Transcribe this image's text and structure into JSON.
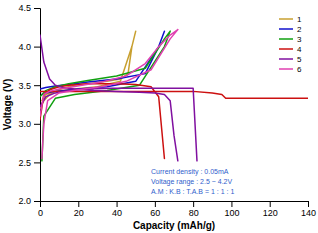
{
  "chart_data": {
    "type": "line",
    "xlabel": "Capacity (mAh/g)",
    "ylabel": "Voltage (V)",
    "xlim": [
      0,
      140
    ],
    "ylim": [
      2.0,
      4.5
    ],
    "xticks": [
      0,
      20,
      40,
      60,
      80,
      100,
      120,
      140
    ],
    "yticks": [
      {
        "value": 2.0,
        "label": "2.0"
      },
      2.5,
      {
        "value": 3.0,
        "label": "3.0"
      },
      3.5,
      {
        "value": 4.0,
        "label": "4.0"
      },
      4.5
    ],
    "grid": false,
    "legend": "upper right",
    "annotation": {
      "lines": [
        "Current density : 0.05mA",
        "Voltage range : 2.5 ~ 4.2V",
        "A.M : K.B : T.A.B = 1 : 1 : 1"
      ],
      "x": 58,
      "y": 2.07,
      "color": "#3060CC"
    },
    "series": [
      {
        "name": "1",
        "color": "#C8A030",
        "x": [
          0,
          2,
          5,
          8,
          12,
          18,
          25,
          35,
          42,
          46,
          48,
          50,
          null,
          50,
          48,
          42,
          30,
          18,
          8,
          3,
          1
        ],
        "values": [
          3.2,
          3.3,
          3.38,
          3.42,
          3.46,
          3.5,
          3.52,
          3.55,
          3.58,
          3.65,
          4.0,
          4.2,
          null,
          4.2,
          4.0,
          3.55,
          3.48,
          3.45,
          3.42,
          3.38,
          3.3
        ]
      },
      {
        "name": "2",
        "color": "#1010CC",
        "x": [
          0,
          3,
          8,
          15,
          25,
          40,
          55,
          62,
          65,
          null,
          65,
          62,
          50,
          35,
          20,
          8,
          3,
          1
        ],
        "values": [
          3.45,
          3.47,
          3.49,
          3.51,
          3.54,
          3.58,
          3.65,
          4.0,
          4.2,
          null,
          4.2,
          4.0,
          3.55,
          3.48,
          3.45,
          3.42,
          3.4,
          3.38
        ]
      },
      {
        "name": "3",
        "color": "#10A010",
        "x": [
          0,
          3,
          8,
          15,
          25,
          40,
          55,
          65,
          68,
          null,
          68,
          65,
          52,
          35,
          18,
          8,
          2,
          1
        ],
        "values": [
          3.35,
          3.43,
          3.48,
          3.52,
          3.56,
          3.62,
          3.72,
          4.1,
          4.2,
          null,
          4.2,
          4.0,
          3.5,
          3.43,
          3.38,
          3.33,
          3.1,
          2.52
        ]
      },
      {
        "name": "4",
        "color": "#CC1010",
        "x": [
          0,
          2,
          5,
          10,
          15,
          25,
          40,
          50,
          58,
          62,
          65,
          null,
          0,
          5,
          15,
          30,
          50,
          65,
          80,
          90,
          95,
          97,
          100,
          120,
          140
        ],
        "values": [
          3.05,
          3.38,
          3.44,
          3.48,
          3.5,
          3.52,
          3.52,
          3.51,
          3.48,
          3.35,
          2.55,
          null,
          3.42,
          3.42,
          3.42,
          3.42,
          3.42,
          3.42,
          3.42,
          3.4,
          3.38,
          3.33,
          3.33,
          3.33,
          3.33
        ]
      },
      {
        "name": "5",
        "color": "#8010A0",
        "x": [
          0,
          2,
          5,
          8,
          12,
          18,
          28,
          40,
          52,
          60,
          65,
          68,
          70,
          72,
          null,
          0,
          3,
          8,
          15,
          25,
          38,
          52,
          62,
          68,
          72,
          76,
          80,
          82
        ],
        "values": [
          4.15,
          3.8,
          3.58,
          3.5,
          3.47,
          3.45,
          3.43,
          3.42,
          3.41,
          3.4,
          3.38,
          3.3,
          2.85,
          2.52,
          null,
          3.22,
          3.35,
          3.4,
          3.43,
          3.45,
          3.46,
          3.46,
          3.46,
          3.46,
          3.46,
          3.46,
          3.46,
          2.52
        ]
      },
      {
        "name": "6",
        "color": "#E040B0",
        "x": [
          0,
          2,
          5,
          10,
          15,
          22,
          32,
          45,
          55,
          62,
          68,
          72,
          null,
          72,
          68,
          58,
          45,
          32,
          20,
          10,
          4,
          2,
          1
        ],
        "values": [
          3.1,
          3.38,
          3.42,
          3.45,
          3.47,
          3.5,
          3.54,
          3.62,
          3.78,
          4.0,
          4.15,
          4.22,
          null,
          4.22,
          4.1,
          3.7,
          3.55,
          3.48,
          3.44,
          3.4,
          3.3,
          3.0,
          2.55
        ]
      }
    ]
  }
}
